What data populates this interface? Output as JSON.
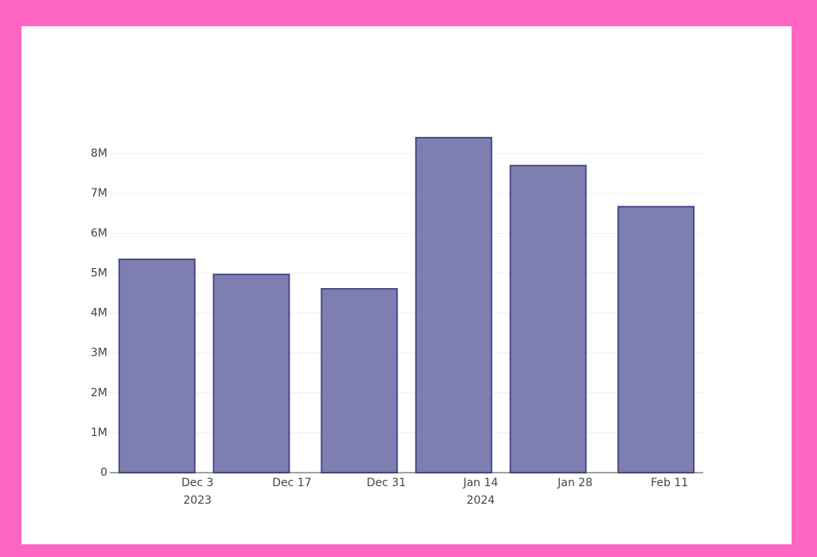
{
  "chart_data": {
    "type": "bar",
    "x": [
      "2023-11-27",
      "2023-12-11",
      "2023-12-27",
      "2024-01-10",
      "2024-01-24",
      "2024-02-09"
    ],
    "values": [
      5350000,
      4970000,
      4610000,
      8400000,
      7700000,
      6670000
    ],
    "color": "#7e7eb1",
    "xlim": [
      "2023-11-20",
      "2024-02-16"
    ],
    "xticks": [
      {
        "value": "2023-12-03",
        "label": "Dec 3",
        "year": "2023"
      },
      {
        "value": "2023-12-17",
        "label": "Dec 17"
      },
      {
        "value": "2023-12-31",
        "label": "Dec 31"
      },
      {
        "value": "2024-01-14",
        "label": "Jan 14",
        "year": "2024"
      },
      {
        "value": "2024-01-28",
        "label": "Jan 28"
      },
      {
        "value": "2024-02-11",
        "label": "Feb 11"
      }
    ],
    "ylim": [
      0,
      8820000
    ],
    "yticks": [
      0,
      {
        "value": 1000000,
        "label": "1M"
      },
      {
        "value": 2000000,
        "label": "2M"
      },
      {
        "value": 3000000,
        "label": "3M"
      },
      {
        "value": 4000000,
        "label": "4M"
      },
      {
        "value": 5000000,
        "label": "5M"
      },
      {
        "value": 6000000,
        "label": "6M"
      },
      {
        "value": 7000000,
        "label": "7M"
      },
      {
        "value": 8000000,
        "label": "8M"
      }
    ],
    "grid": true
  }
}
